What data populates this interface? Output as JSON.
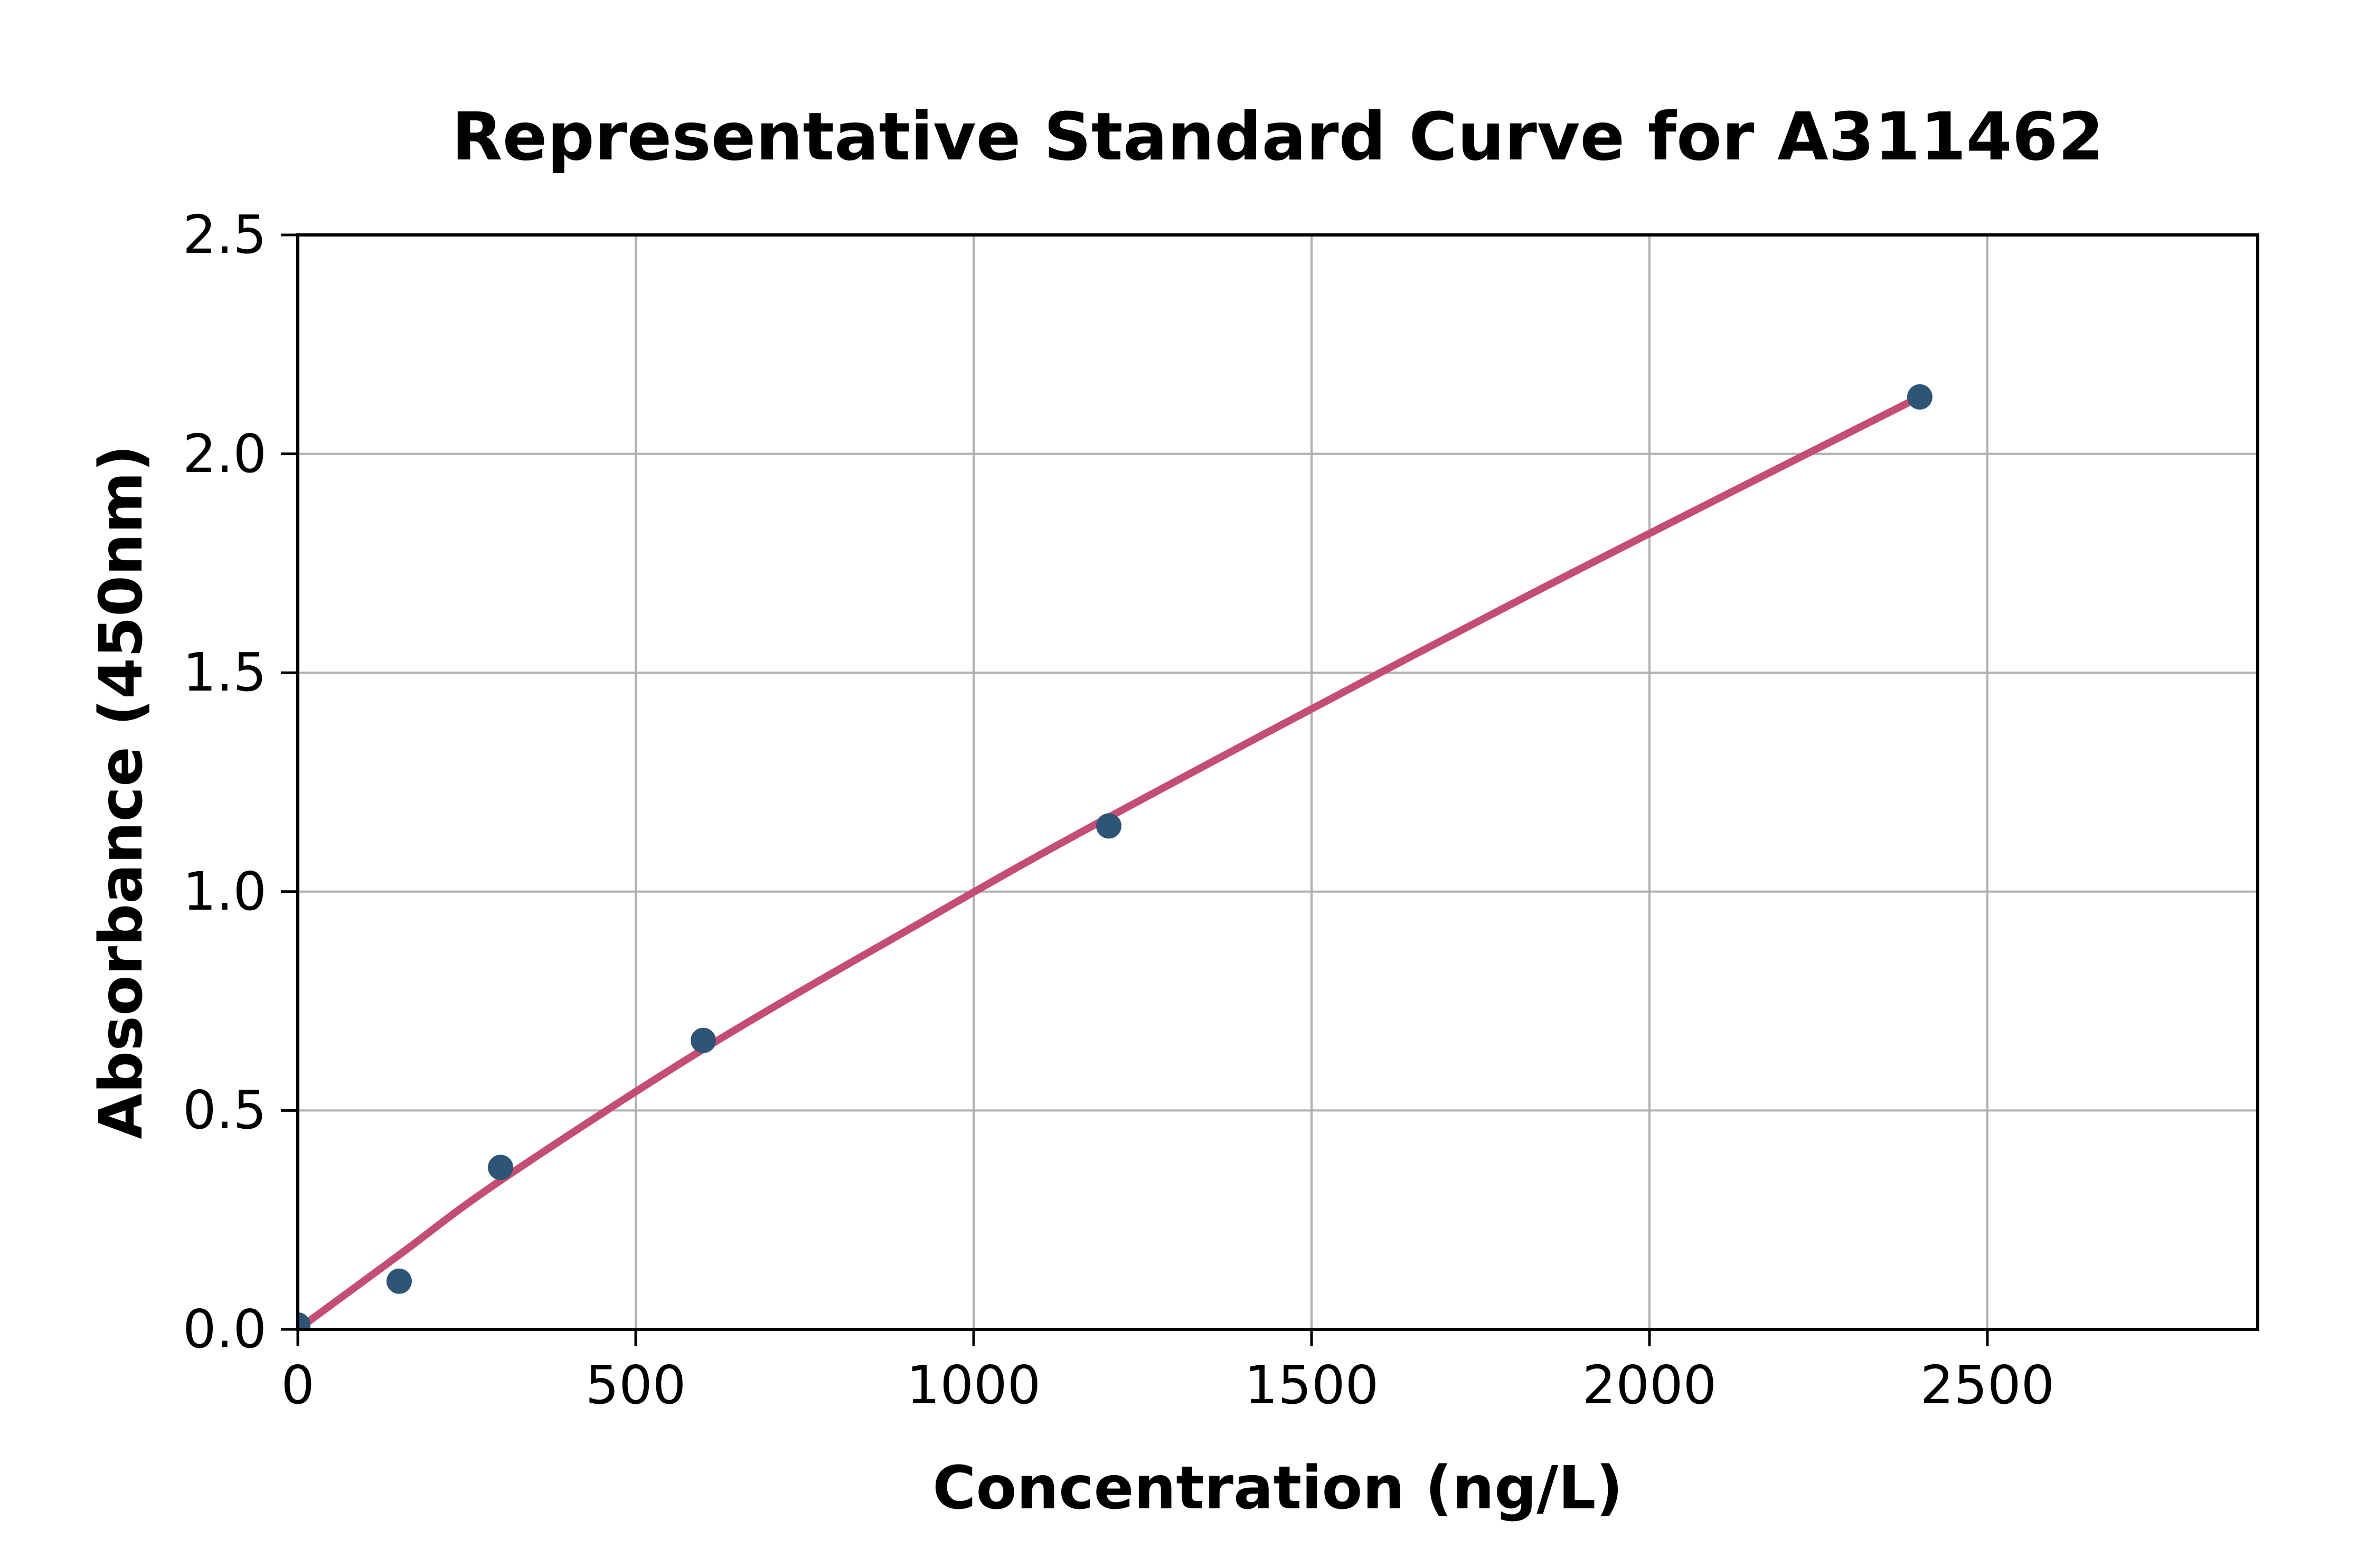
{
  "chart_data": {
    "type": "scatter",
    "title": "Representative Standard Curve for A311462",
    "xlabel": "Concentration (ng/L)",
    "ylabel": "Absorbance (450nm)",
    "xlim": [
      0,
      2900
    ],
    "ylim": [
      0,
      2.5
    ],
    "x_ticks": [
      0,
      500,
      1000,
      1500,
      2000,
      2500
    ],
    "x_tick_labels": [
      "0",
      "500",
      "1000",
      "1500",
      "2000",
      "2500"
    ],
    "y_ticks": [
      0.0,
      0.5,
      1.0,
      1.5,
      2.0,
      2.5
    ],
    "y_tick_labels": [
      "0.0",
      "0.5",
      "1.0",
      "1.5",
      "2.0",
      "2.5"
    ],
    "grid": true,
    "legend": false,
    "colors": {
      "point": "#2E5476",
      "curve": "#C44E73",
      "grid": "#B0B0B0",
      "spine": "#000000",
      "text": "#000000"
    },
    "series": [
      {
        "name": "standard-points",
        "type": "scatter",
        "x": [
          0,
          150,
          300,
          600,
          1200,
          2400
        ],
        "y": [
          0.01,
          0.11,
          0.37,
          0.66,
          1.15,
          2.13
        ]
      },
      {
        "name": "fit-curve",
        "type": "line",
        "points": [
          [
            0,
            0
          ],
          [
            150,
            0.17
          ],
          [
            300,
            0.34
          ],
          [
            600,
            0.64
          ],
          [
            900,
            0.91
          ],
          [
            1200,
            1.17
          ],
          [
            1800,
            1.66
          ],
          [
            2400,
            2.13
          ]
        ]
      }
    ]
  }
}
